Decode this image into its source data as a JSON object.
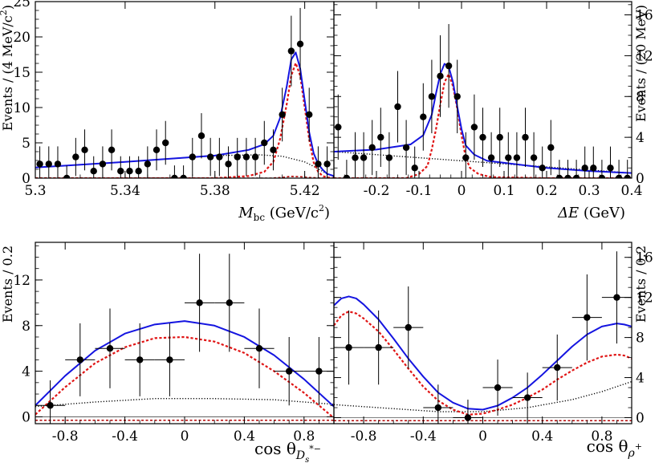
{
  "chart_data": [
    {
      "id": "mbc",
      "type": "scatter",
      "xlabel": "M_bc (GeV/c²)",
      "xlabel_main": "M",
      "xlabel_sub": "bc",
      "xlabel_unit": " (GeV/c",
      "xlabel_sup": "2",
      "xlabel_close": ")",
      "ylabel": "Events / (4 MeV/c²)",
      "ylabel_main": "Events / (4 MeV/c",
      "ylabel_sup": "2",
      "ylabel_close": ")",
      "y_axis_side": "left",
      "xlim": [
        5.3,
        5.433
      ],
      "ylim": [
        0,
        25
      ],
      "x_ticks": [
        5.3,
        5.34,
        5.38,
        5.42
      ],
      "x_tick_labels": [
        "5.3",
        "5.34",
        "5.38",
        "5.42"
      ],
      "y_ticks": [
        0,
        5,
        10,
        15,
        20,
        25
      ],
      "y_tick_labels": [
        "0",
        "5",
        "10",
        "15",
        "20",
        "25"
      ],
      "points": [
        {
          "x": 5.302,
          "y": 2,
          "err": 2.5
        },
        {
          "x": 5.306,
          "y": 2,
          "err": 2.5
        },
        {
          "x": 5.31,
          "y": 2,
          "err": 2.5
        },
        {
          "x": 5.314,
          "y": 0,
          "err": 1.8
        },
        {
          "x": 5.318,
          "y": 3,
          "err": 2.7
        },
        {
          "x": 5.322,
          "y": 4,
          "err": 2.9
        },
        {
          "x": 5.326,
          "y": 1,
          "err": 2.1
        },
        {
          "x": 5.33,
          "y": 2,
          "err": 2.5
        },
        {
          "x": 5.334,
          "y": 4,
          "err": 2.9
        },
        {
          "x": 5.338,
          "y": 1,
          "err": 2.1
        },
        {
          "x": 5.342,
          "y": 1,
          "err": 2.1
        },
        {
          "x": 5.346,
          "y": 1,
          "err": 2.1
        },
        {
          "x": 5.35,
          "y": 2,
          "err": 2.5
        },
        {
          "x": 5.354,
          "y": 4,
          "err": 2.9
        },
        {
          "x": 5.358,
          "y": 5,
          "err": 3.1
        },
        {
          "x": 5.362,
          "y": 0,
          "err": 1.8
        },
        {
          "x": 5.366,
          "y": 0,
          "err": 1.8
        },
        {
          "x": 5.37,
          "y": 3,
          "err": 2.7
        },
        {
          "x": 5.374,
          "y": 6,
          "err": 3.2
        },
        {
          "x": 5.378,
          "y": 3,
          "err": 2.7
        },
        {
          "x": 5.382,
          "y": 3,
          "err": 2.7
        },
        {
          "x": 5.386,
          "y": 2,
          "err": 2.5
        },
        {
          "x": 5.39,
          "y": 3,
          "err": 2.7
        },
        {
          "x": 5.394,
          "y": 3,
          "err": 2.7
        },
        {
          "x": 5.398,
          "y": 3,
          "err": 2.7
        },
        {
          "x": 5.402,
          "y": 5,
          "err": 3.1
        },
        {
          "x": 5.406,
          "y": 4,
          "err": 2.9
        },
        {
          "x": 5.41,
          "y": 9,
          "err": 3.8
        },
        {
          "x": 5.414,
          "y": 18,
          "err": 5.0
        },
        {
          "x": 5.418,
          "y": 19,
          "err": 5.1
        },
        {
          "x": 5.422,
          "y": 9,
          "err": 3.8
        },
        {
          "x": 5.426,
          "y": 2,
          "err": 2.5
        },
        {
          "x": 5.43,
          "y": 2,
          "err": 2.5
        },
        {
          "x": 5.434,
          "y": 0,
          "err": 1.8
        }
      ],
      "curves": {
        "total": {
          "x": [
            5.3,
            5.34,
            5.38,
            5.395,
            5.402,
            5.406,
            5.409,
            5.412,
            5.414,
            5.416,
            5.418,
            5.42,
            5.422,
            5.424,
            5.426,
            5.428,
            5.43,
            5.433
          ],
          "y": [
            1.5,
            2.3,
            3.2,
            4.0,
            4.8,
            6.0,
            8.5,
            13,
            16.8,
            17.8,
            15.5,
            11,
            6.5,
            3.5,
            2.0,
            1.2,
            0.6,
            0.3
          ]
        },
        "signal": {
          "x": [
            5.3,
            5.38,
            5.395,
            5.402,
            5.406,
            5.409,
            5.412,
            5.414,
            5.416,
            5.418,
            5.42,
            5.422,
            5.424,
            5.426,
            5.428,
            5.43,
            5.433
          ],
          "y": [
            0,
            0,
            0.3,
            0.9,
            2.3,
            5.5,
            10.5,
            14.5,
            16.3,
            14.5,
            10,
            5.5,
            2.2,
            0.9,
            0.3,
            0.1,
            0
          ]
        },
        "background": {
          "x": [
            5.3,
            5.34,
            5.38,
            5.4,
            5.41,
            5.42,
            5.425,
            5.43,
            5.433
          ],
          "y": [
            1.5,
            2.3,
            3.2,
            3.3,
            3.1,
            2.3,
            1.5,
            0.6,
            0.3
          ]
        },
        "peaking": {
          "x": [
            5.3,
            5.405,
            5.41,
            5.414,
            5.418,
            5.422,
            5.428,
            5.433
          ],
          "y": [
            0,
            0,
            0.1,
            0.25,
            0.2,
            0.1,
            0,
            0
          ]
        }
      }
    },
    {
      "id": "de",
      "type": "scatter",
      "xlabel": "ΔE (GeV)",
      "xlabel_main": "ΔE",
      "xlabel_unit": " (GeV)",
      "ylabel": "Events / (20 MeV)",
      "y_axis_side": "right",
      "xlim": [
        -0.3,
        0.4
      ],
      "ylim": [
        0,
        17.3
      ],
      "x_ticks": [
        -0.2,
        -0.1,
        0,
        0.1,
        0.2,
        0.3,
        0.4
      ],
      "x_tick_labels": [
        "-0.2",
        "-0.1",
        "0",
        "0.1",
        "0.2",
        "0.3",
        "0.4"
      ],
      "y_ticks": [
        0,
        4,
        8,
        12,
        16
      ],
      "y_tick_labels": [
        "0",
        "4",
        "8",
        "12",
        "16"
      ],
      "points": [
        {
          "x": -0.29,
          "y": 5,
          "err": 3.2
        },
        {
          "x": -0.27,
          "y": 0,
          "err": 1.8
        },
        {
          "x": -0.25,
          "y": 2,
          "err": 2.5
        },
        {
          "x": -0.23,
          "y": 2,
          "err": 2.5
        },
        {
          "x": -0.21,
          "y": 3,
          "err": 2.7
        },
        {
          "x": -0.19,
          "y": 4,
          "err": 2.9
        },
        {
          "x": -0.17,
          "y": 2,
          "err": 2.5
        },
        {
          "x": -0.15,
          "y": 7,
          "err": 3.5
        },
        {
          "x": -0.13,
          "y": 3,
          "err": 2.7
        },
        {
          "x": -0.11,
          "y": 1,
          "err": 2.1
        },
        {
          "x": -0.09,
          "y": 6,
          "err": 3.3
        },
        {
          "x": -0.07,
          "y": 8,
          "err": 3.6
        },
        {
          "x": -0.05,
          "y": 10,
          "err": 4.0
        },
        {
          "x": -0.03,
          "y": 11,
          "err": 4.1
        },
        {
          "x": -0.01,
          "y": 8,
          "err": 3.6
        },
        {
          "x": 0.01,
          "y": 2,
          "err": 2.5
        },
        {
          "x": 0.03,
          "y": 5,
          "err": 3.2
        },
        {
          "x": 0.05,
          "y": 4,
          "err": 2.9
        },
        {
          "x": 0.07,
          "y": 2,
          "err": 2.5
        },
        {
          "x": 0.09,
          "y": 4,
          "err": 2.9
        },
        {
          "x": 0.11,
          "y": 2,
          "err": 2.5
        },
        {
          "x": 0.13,
          "y": 2,
          "err": 2.5
        },
        {
          "x": 0.15,
          "y": 4,
          "err": 2.9
        },
        {
          "x": 0.17,
          "y": 2,
          "err": 2.5
        },
        {
          "x": 0.19,
          "y": 1,
          "err": 2.1
        },
        {
          "x": 0.21,
          "y": 3,
          "err": 2.7
        },
        {
          "x": 0.23,
          "y": 0,
          "err": 1.8
        },
        {
          "x": 0.25,
          "y": 0,
          "err": 1.8
        },
        {
          "x": 0.27,
          "y": 0,
          "err": 1.8
        },
        {
          "x": 0.29,
          "y": 1,
          "err": 2.1
        },
        {
          "x": 0.31,
          "y": 1,
          "err": 2.1
        },
        {
          "x": 0.33,
          "y": 0,
          "err": 1.8
        },
        {
          "x": 0.35,
          "y": 1,
          "err": 2.1
        },
        {
          "x": 0.37,
          "y": 0,
          "err": 1.8
        },
        {
          "x": 0.39,
          "y": 0,
          "err": 1.8
        }
      ],
      "curves": {
        "total": {
          "x": [
            -0.3,
            -0.2,
            -0.12,
            -0.09,
            -0.07,
            -0.06,
            -0.05,
            -0.04,
            -0.03,
            -0.02,
            -0.01,
            0,
            0.01,
            0.03,
            0.06,
            0.1,
            0.2,
            0.3,
            0.4
          ],
          "y": [
            2.6,
            2.8,
            3.3,
            4.2,
            6.2,
            8.3,
            10.2,
            11.2,
            10.9,
            9.4,
            7.0,
            4.8,
            3.2,
            2.3,
            1.7,
            1.5,
            1.0,
            0.7,
            0.5
          ]
        },
        "signal": {
          "x": [
            -0.3,
            -0.13,
            -0.1,
            -0.08,
            -0.07,
            -0.06,
            -0.05,
            -0.04,
            -0.03,
            -0.02,
            -0.01,
            0,
            0.01,
            0.02,
            0.04,
            0.07,
            0.2,
            0.4
          ],
          "y": [
            0,
            0,
            0.4,
            1.2,
            2.8,
            4.8,
            7.2,
            9.4,
            10.2,
            9.0,
            6.8,
            4.2,
            2.0,
            1.0,
            0.4,
            0.1,
            0,
            0
          ]
        },
        "background": {
          "x": [
            -0.3,
            -0.2,
            -0.1,
            0,
            0.1,
            0.2,
            0.3,
            0.4
          ],
          "y": [
            2.6,
            2.3,
            2.0,
            1.7,
            1.4,
            1.1,
            0.8,
            0.5
          ]
        },
        "peaking": {
          "x": [
            -0.3,
            -0.15,
            -0.1,
            -0.05,
            -0.02,
            0,
            0.05,
            0.4
          ],
          "y": [
            0,
            0,
            -0.1,
            -0.3,
            -0.25,
            -0.1,
            0,
            0
          ]
        }
      }
    },
    {
      "id": "cosds",
      "type": "scatter",
      "xlabel": "cos θ_{Ds*−}",
      "xlabel_main": "cos θ",
      "xlabel_sub": "D",
      "xlabel_subsub": "s",
      "xlabel_subsup": "*−",
      "ylabel": "Events / 0.2",
      "y_axis_side": "left",
      "xlim": [
        -1,
        1
      ],
      "ylim": [
        -0.6,
        15.3
      ],
      "x_ticks": [
        -0.8,
        -0.4,
        0,
        0.4,
        0.8
      ],
      "x_tick_labels": [
        "-0.8",
        "-0.4",
        "0",
        "0.4",
        "0.8"
      ],
      "y_ticks": [
        0,
        4,
        8,
        12
      ],
      "y_tick_labels": [
        "0",
        "4",
        "8",
        "12"
      ],
      "points": [
        {
          "x": -0.9,
          "y": 1,
          "err": 2.2,
          "xerr": 0.1
        },
        {
          "x": -0.7,
          "y": 5,
          "err": 3.2,
          "xerr": 0.1
        },
        {
          "x": -0.5,
          "y": 6,
          "err": 3.5,
          "xerr": 0.1
        },
        {
          "x": -0.3,
          "y": 5,
          "err": 3.2,
          "xerr": 0.1
        },
        {
          "x": -0.1,
          "y": 5,
          "err": 3.2,
          "xerr": 0.1
        },
        {
          "x": 0.1,
          "y": 10,
          "err": 4.3,
          "xerr": 0.1
        },
        {
          "x": 0.3,
          "y": 10,
          "err": 4.3,
          "xerr": 0.1
        },
        {
          "x": 0.5,
          "y": 6,
          "err": 3.5,
          "xerr": 0.1
        },
        {
          "x": 0.7,
          "y": 4,
          "err": 3.0,
          "xerr": 0.1
        },
        {
          "x": 0.9,
          "y": 4,
          "err": 3.0,
          "xerr": 0.1
        }
      ],
      "curves": {
        "total": {
          "x": [
            -1,
            -0.8,
            -0.6,
            -0.4,
            -0.2,
            0,
            0.2,
            0.4,
            0.6,
            0.8,
            1
          ],
          "y": [
            1.0,
            3.6,
            5.8,
            7.3,
            8.1,
            8.4,
            8.0,
            7.0,
            5.4,
            3.3,
            0.9
          ]
        },
        "signal": {
          "x": [
            -1,
            -0.8,
            -0.6,
            -0.4,
            -0.2,
            0,
            0.2,
            0.4,
            0.6,
            0.8,
            1
          ],
          "y": [
            0.2,
            2.6,
            4.7,
            6.1,
            6.9,
            7.0,
            6.6,
            5.6,
            4.0,
            2.1,
            -0.1
          ]
        },
        "background": {
          "x": [
            -1,
            -0.6,
            -0.2,
            0.2,
            0.6,
            1
          ],
          "y": [
            0.9,
            1.3,
            1.6,
            1.6,
            1.5,
            1.1
          ]
        },
        "peaking": {
          "x": [
            -1,
            0,
            1
          ],
          "y": [
            -0.3,
            -0.3,
            -0.3
          ]
        }
      }
    },
    {
      "id": "cosrho",
      "type": "scatter",
      "xlabel": "cos θ_{ρ+}",
      "xlabel_main": "cos θ",
      "xlabel_sub": "ρ",
      "xlabel_subsup": "+",
      "ylabel": "Events / 0.2",
      "y_axis_side": "right",
      "xlim": [
        -1,
        1
      ],
      "ylim": [
        -0.6,
        17.5
      ],
      "x_ticks": [
        -0.8,
        -0.4,
        0,
        0.4,
        0.8
      ],
      "x_tick_labels": [
        "-0.8",
        "-0.4",
        "0",
        "0.4",
        "0.8"
      ],
      "y_ticks": [
        0,
        4,
        8,
        12,
        16
      ],
      "y_tick_labels": [
        "0",
        "4",
        "8",
        "12",
        "16"
      ],
      "points": [
        {
          "x": -0.9,
          "y": 7,
          "err": 3.7,
          "xerr": 0.1
        },
        {
          "x": -0.7,
          "y": 7,
          "err": 3.7,
          "xerr": 0.1
        },
        {
          "x": -0.5,
          "y": 9,
          "err": 4.1,
          "xerr": 0.1
        },
        {
          "x": -0.3,
          "y": 1,
          "err": 2.3,
          "xerr": 0.1
        },
        {
          "x": -0.1,
          "y": 0,
          "err": 1.8,
          "xerr": 0.1
        },
        {
          "x": 0.1,
          "y": 3,
          "err": 2.8,
          "xerr": 0.1
        },
        {
          "x": 0.3,
          "y": 2,
          "err": 2.5,
          "xerr": 0.1
        },
        {
          "x": 0.5,
          "y": 5,
          "err": 3.3,
          "xerr": 0.1
        },
        {
          "x": 0.7,
          "y": 10,
          "err": 4.3,
          "xerr": 0.1
        },
        {
          "x": 0.9,
          "y": 12,
          "err": 4.6,
          "xerr": 0.1
        }
      ],
      "curves": {
        "total": {
          "x": [
            -1,
            -0.95,
            -0.9,
            -0.85,
            -0.8,
            -0.7,
            -0.6,
            -0.5,
            -0.4,
            -0.3,
            -0.2,
            -0.1,
            0,
            0.1,
            0.2,
            0.3,
            0.4,
            0.5,
            0.6,
            0.7,
            0.8,
            0.9,
            0.95,
            1
          ],
          "y": [
            11.2,
            11.9,
            12.1,
            11.9,
            11.3,
            9.8,
            7.9,
            5.9,
            4.1,
            2.5,
            1.5,
            0.9,
            0.8,
            1.2,
            2.0,
            3.0,
            4.3,
            5.7,
            7.1,
            8.3,
            9.1,
            9.4,
            9.3,
            9.1
          ]
        },
        "signal": {
          "x": [
            -1,
            -0.95,
            -0.9,
            -0.85,
            -0.8,
            -0.7,
            -0.6,
            -0.5,
            -0.4,
            -0.3,
            -0.2,
            -0.1,
            0,
            0.1,
            0.2,
            0.3,
            0.4,
            0.5,
            0.6,
            0.7,
            0.8,
            0.9,
            0.95,
            1
          ],
          "y": [
            9.2,
            10.2,
            10.6,
            10.4,
            9.9,
            8.6,
            6.8,
            4.9,
            3.1,
            1.7,
            0.8,
            0.3,
            0.4,
            0.8,
            1.3,
            2.0,
            2.8,
            3.8,
            4.7,
            5.5,
            6.1,
            6.3,
            6.2,
            5.9
          ]
        },
        "background": {
          "x": [
            -1,
            -0.6,
            -0.3,
            0,
            0.3,
            0.6,
            0.8,
            1
          ],
          "y": [
            1.3,
            0.9,
            0.6,
            0.6,
            1.0,
            1.8,
            2.6,
            3.6
          ]
        },
        "peaking": {
          "x": [
            -1,
            0,
            1
          ],
          "y": [
            -0.3,
            -0.3,
            -0.3
          ]
        }
      }
    }
  ],
  "colors": {
    "total": "#1414e0",
    "signal": "#e01414",
    "background": "#000000",
    "peaking": "#b00000",
    "points": "#000000"
  }
}
